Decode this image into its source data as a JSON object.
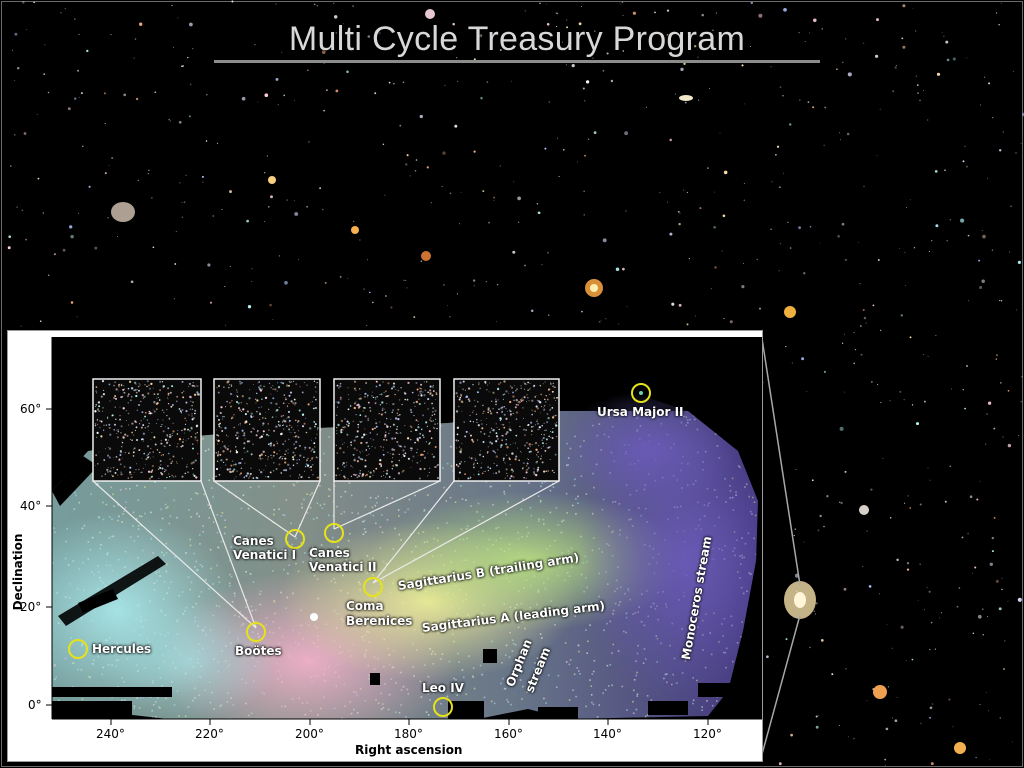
{
  "slide": {
    "title": "Multi Cycle Treasury Program"
  },
  "map": {
    "axis": {
      "x_title": "Right ascension",
      "y_title": "Declination",
      "x_ticks": [
        "240°",
        "220°",
        "200°",
        "180°",
        "160°",
        "140°",
        "120°"
      ],
      "y_ticks": [
        "60°",
        "40°",
        "20°",
        "0°"
      ]
    },
    "labels": {
      "ursa_major": "Ursa Major II",
      "cvn1_a": "Canes",
      "cvn1_b": "Venatici I",
      "cvn2_a": "Canes",
      "cvn2_b": "Venatici II",
      "coma_a": "Coma",
      "coma_b": "Berenices",
      "hercules": "Hercules",
      "bootes": "Boötes",
      "leo": "Leo IV",
      "sgr_b": "Sagittarius B (trailing arm)",
      "sgr_a": "Sagittarius A (leading arm)",
      "orphan_a": "Orphan",
      "orphan_b": "stream",
      "monoceros": "Monoceros stream"
    }
  },
  "colors": {
    "background": "#000000",
    "title_text": "#d8d8d8",
    "marker": "#e6e21a",
    "callout_line": "#e8e8e8"
  }
}
